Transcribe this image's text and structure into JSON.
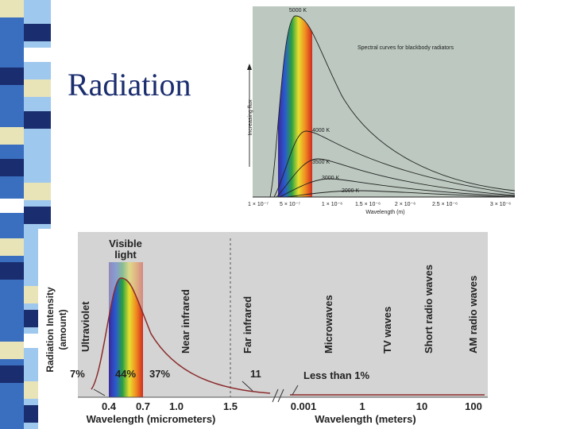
{
  "slide": {
    "title": "Radiation"
  },
  "figure_top": {
    "title": "Spectral curves for blackbody radiators",
    "y_label": "Increasing flux",
    "x_label": "Wavelength (m)",
    "curve_labels": [
      "5000 K",
      "4000 K",
      "3500 K",
      "3000 K",
      "2000 K"
    ],
    "x_ticks": [
      "1 × 10⁻⁷",
      "5 × 10⁻⁷",
      "1 × 10⁻⁶",
      "1.5 × 10⁻⁶",
      "2 × 10⁻⁶",
      "2.5 × 10⁻⁶",
      "3 × 10⁻⁶"
    ]
  },
  "figure_bottom": {
    "band_label": [
      "Visible",
      "light"
    ],
    "y_label": [
      "Radiation Intensity",
      "(amount)"
    ],
    "regions": [
      "Ultraviolet",
      "Near infrared",
      "Far infrared",
      "Microwaves",
      "TV waves",
      "Short radio waves",
      "AM radio waves"
    ],
    "shares": [
      "7%",
      "44%",
      "37%",
      "11",
      "Less than 1%"
    ],
    "x_ticks_micrometers": [
      "0.4",
      "0.7",
      "1.0",
      "1.5"
    ],
    "x_ticks_meters": [
      "0.001",
      "1",
      "10",
      "100"
    ],
    "x_label_micrometers": "Wavelength (micrometers)",
    "x_label_meters": "Wavelength (meters)"
  }
}
